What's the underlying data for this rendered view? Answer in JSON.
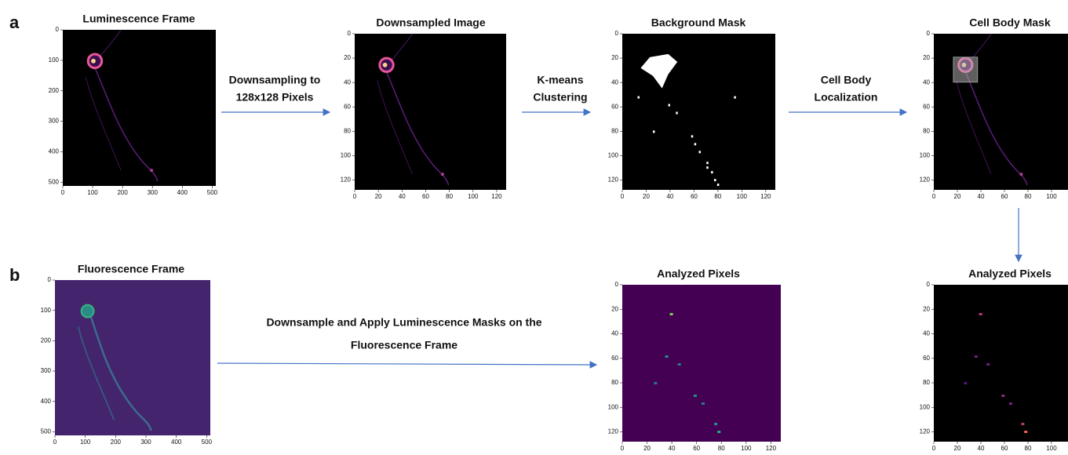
{
  "figure_labels": [
    "a",
    "b"
  ],
  "panels": [
    {
      "title": "Luminescence Frame",
      "xticks": [
        0,
        100,
        200,
        300,
        400,
        500
      ],
      "yticks": [
        0,
        100,
        200,
        300,
        400,
        500
      ]
    },
    {
      "title": "Downsampled Image",
      "xticks": [
        0,
        20,
        40,
        60,
        80,
        100,
        120
      ],
      "yticks": [
        0,
        20,
        40,
        60,
        80,
        100,
        120
      ]
    },
    {
      "title": "Background Mask",
      "xticks": [
        0,
        20,
        40,
        60,
        80,
        100,
        120
      ],
      "yticks": [
        0,
        20,
        40,
        60,
        80,
        100,
        120
      ]
    },
    {
      "title": "Cell Body Mask",
      "xticks": [
        0,
        20,
        40,
        60,
        80,
        100
      ],
      "yticks": [
        0,
        20,
        40,
        60,
        80,
        100,
        120
      ]
    },
    {
      "title": "Fluorescence Frame",
      "xticks": [
        0,
        100,
        200,
        300,
        400,
        500
      ],
      "yticks": [
        0,
        100,
        200,
        300,
        400,
        500
      ]
    },
    {
      "title": "Analyzed Pixels",
      "xticks": [
        0,
        20,
        40,
        60,
        80,
        100,
        120
      ],
      "yticks": [
        0,
        20,
        40,
        60,
        80,
        100,
        120
      ]
    },
    {
      "title": "Analyzed Pixels",
      "xticks": [
        0,
        20,
        40,
        60,
        80,
        100
      ],
      "yticks": [
        0,
        20,
        40,
        60,
        80,
        100,
        120
      ]
    }
  ],
  "arrows": [
    {
      "lines": [
        "Downsampling to",
        "128x128 Pixels"
      ]
    },
    {
      "lines": [
        "K-means",
        "Clustering"
      ]
    },
    {
      "lines": [
        "Cell Body",
        "Localization"
      ]
    },
    {
      "lines": [
        "Downsample and Apply Luminescence Masks  on the",
        "Fluorescence Frame"
      ]
    }
  ]
}
